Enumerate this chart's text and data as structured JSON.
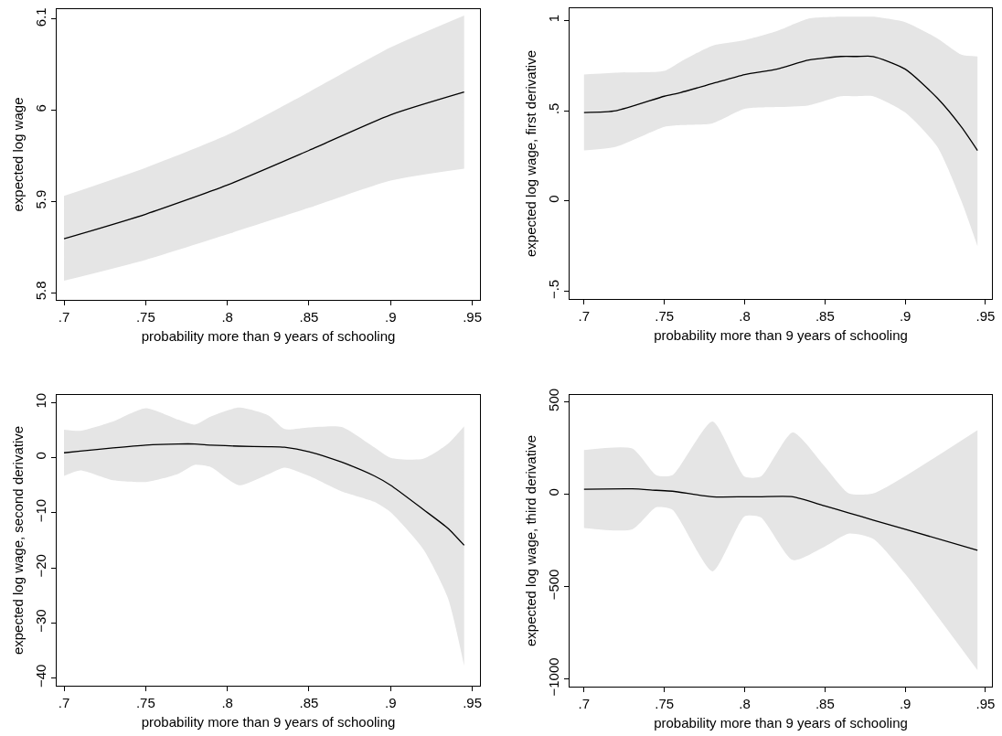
{
  "chart_data": [
    {
      "type": "line",
      "xlabel": "probability more than 9 years of schooling",
      "ylabel": "expected log wage",
      "xlim": [
        0.6955,
        0.9547
      ],
      "ylim": [
        5.792,
        6.111
      ],
      "xticks": [
        {
          "value": 0.7,
          "label": ".7"
        },
        {
          "value": 0.75,
          "label": ".75"
        },
        {
          "value": 0.8,
          "label": ".8"
        },
        {
          "value": 0.85,
          "label": ".85"
        },
        {
          "value": 0.9,
          "label": ".9"
        },
        {
          "value": 0.95,
          "label": ".95"
        }
      ],
      "yticks": [
        5.8,
        5.9,
        6,
        6.1
      ],
      "grid": false,
      "marker": "none",
      "line_style": "solid",
      "series": [
        {
          "color": "#000000",
          "x": [
            0.7,
            0.75,
            0.8,
            0.85,
            0.9,
            0.945
          ],
          "values": [
            5.859,
            5.886,
            5.918,
            5.956,
            5.995,
            6.02
          ],
          "lower": [
            5.813,
            5.836,
            5.864,
            5.893,
            5.923,
            5.936
          ],
          "upper": [
            5.906,
            5.937,
            5.973,
            6.02,
            6.069,
            6.104
          ]
        }
      ]
    },
    {
      "type": "line",
      "xlabel": "probability more than 9 years of schooling",
      "ylabel": "expected log wage, first derivative",
      "xlim": [
        0.691,
        0.954
      ],
      "ylim": [
        -0.542,
        1.067
      ],
      "xticks": [
        {
          "value": 0.7,
          "label": ".7"
        },
        {
          "value": 0.75,
          "label": ".75"
        },
        {
          "value": 0.8,
          "label": ".8"
        },
        {
          "value": 0.85,
          "label": ".85"
        },
        {
          "value": 0.9,
          "label": ".9"
        },
        {
          "value": 0.95,
          "label": ".95"
        }
      ],
      "yticks": [
        {
          "value": -0.5,
          "label": "−.5"
        },
        0,
        {
          "value": 0.5,
          "label": ".5"
        },
        1
      ],
      "grid": false,
      "marker": "none",
      "line_style": "solid",
      "series": [
        {
          "color": "#000000",
          "x": [
            0.7,
            0.72,
            0.75,
            0.76,
            0.78,
            0.8,
            0.82,
            0.84,
            0.86,
            0.87,
            0.88,
            0.9,
            0.92,
            0.935,
            0.945
          ],
          "values": [
            0.49,
            0.5,
            0.58,
            0.6,
            0.65,
            0.7,
            0.73,
            0.78,
            0.8,
            0.8,
            0.8,
            0.73,
            0.57,
            0.41,
            0.28
          ],
          "lower": [
            0.28,
            0.3,
            0.41,
            0.42,
            0.43,
            0.51,
            0.52,
            0.53,
            0.58,
            0.58,
            0.58,
            0.49,
            0.3,
            0,
            -0.25
          ],
          "upper": [
            0.7,
            0.71,
            0.72,
            0.77,
            0.86,
            0.89,
            0.94,
            1.01,
            1.02,
            1.02,
            1.02,
            0.99,
            0.9,
            0.81,
            0.8
          ]
        }
      ]
    },
    {
      "type": "line",
      "xlabel": "probability more than 9 years of schooling",
      "ylabel": "expected log wage, second derivative",
      "xlim": [
        0.6955,
        0.9547
      ],
      "ylim": [
        -41.4,
        11.4
      ],
      "xticks": [
        {
          "value": 0.7,
          "label": ".7"
        },
        {
          "value": 0.75,
          "label": ".75"
        },
        {
          "value": 0.8,
          "label": ".8"
        },
        {
          "value": 0.85,
          "label": ".85"
        },
        {
          "value": 0.9,
          "label": ".9"
        },
        {
          "value": 0.95,
          "label": ".95"
        }
      ],
      "yticks": [
        {
          "value": -40,
          "label": "−40"
        },
        {
          "value": -30,
          "label": "−30"
        },
        {
          "value": -20,
          "label": "−20"
        },
        {
          "value": -10,
          "label": "−10"
        },
        0,
        10
      ],
      "grid": false,
      "marker": "none",
      "line_style": "solid",
      "series": [
        {
          "color": "#000000",
          "x": [
            0.7,
            0.71,
            0.73,
            0.75,
            0.77,
            0.78,
            0.79,
            0.807,
            0.825,
            0.835,
            0.85,
            0.87,
            0.89,
            0.9,
            0.92,
            0.935,
            0.945
          ],
          "values": [
            0.9,
            1.2,
            1.8,
            2.3,
            2.5,
            2.5,
            2.3,
            2.1,
            2,
            1.9,
            1.1,
            -0.8,
            -3.3,
            -5,
            -9.4,
            -12.8,
            -15.9
          ],
          "lower": [
            -3.3,
            -2.3,
            -4.1,
            -4.4,
            -2.9,
            -1.3,
            -1.7,
            -5,
            -3,
            -1.8,
            -3.3,
            -6.1,
            -8,
            -9.9,
            -16.6,
            -25.4,
            -37.8
          ],
          "upper": [
            5.1,
            4.9,
            6.6,
            9,
            6.9,
            6,
            7.5,
            9.1,
            7.7,
            5.2,
            5.5,
            5.6,
            1.9,
            0,
            -0.2,
            2.5,
            5.7
          ]
        }
      ]
    },
    {
      "type": "line",
      "xlabel": "probability more than 9 years of schooling",
      "ylabel": "expected log wage, third derivative",
      "xlim": [
        0.691,
        0.954
      ],
      "ylim": [
        -1041,
        538
      ],
      "xticks": [
        {
          "value": 0.7,
          "label": ".7"
        },
        {
          "value": 0.75,
          "label": ".75"
        },
        {
          "value": 0.8,
          "label": ".8"
        },
        {
          "value": 0.85,
          "label": ".85"
        },
        {
          "value": 0.9,
          "label": ".9"
        },
        {
          "value": 0.95,
          "label": ".95"
        }
      ],
      "yticks": [
        {
          "value": -1000,
          "label": "−1000"
        },
        {
          "value": -500,
          "label": "−500"
        },
        0,
        500
      ],
      "grid": false,
      "marker": "none",
      "line_style": "solid",
      "series": [
        {
          "color": "#000000",
          "x": [
            0.7,
            0.73,
            0.745,
            0.755,
            0.78,
            0.8,
            0.81,
            0.83,
            0.85,
            0.865,
            0.88,
            0.9,
            0.945
          ],
          "values": [
            28,
            30,
            22,
            17,
            -13,
            -13,
            -13,
            -13,
            -63,
            -101,
            -139,
            -189,
            -303
          ],
          "lower": [
            -182,
            -190,
            -70,
            -83,
            -417,
            -119,
            -124,
            -356,
            -282,
            -212,
            -240,
            -431,
            -952
          ],
          "upper": [
            240,
            248,
            104,
            104,
            394,
            96,
            96,
            335,
            150,
            5,
            5,
            99,
            348
          ]
        }
      ]
    }
  ]
}
